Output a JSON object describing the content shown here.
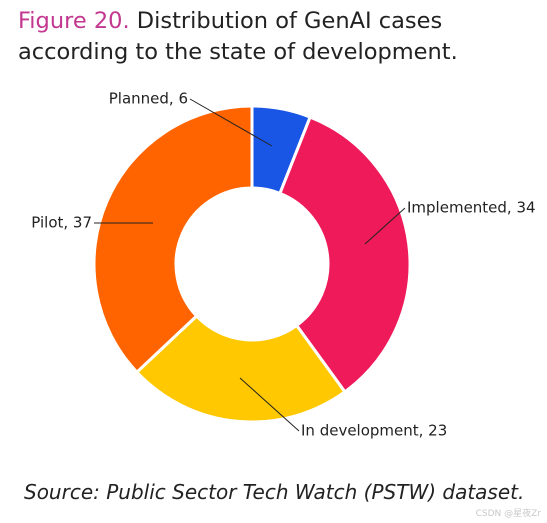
{
  "title": {
    "label": "Figure 20.",
    "text": "Distribution of GenAI cases according to the state of development."
  },
  "chart_data": {
    "type": "pie",
    "donut": true,
    "categories": [
      "Planned",
      "Implemented",
      "In development",
      "Pilot"
    ],
    "values": [
      6,
      34,
      23,
      37
    ],
    "colors": [
      "#1a56e6",
      "#ef1a5a",
      "#ffc800",
      "#ff6400"
    ],
    "labels": [
      "Planned, 6",
      "Implemented, 34",
      "In development, 23",
      "Pilot, 37"
    ],
    "legend": "none"
  },
  "source": "Source: Public Sector Tech Watch (PSTW) dataset.",
  "watermark": "CSDN @星夜Zr"
}
